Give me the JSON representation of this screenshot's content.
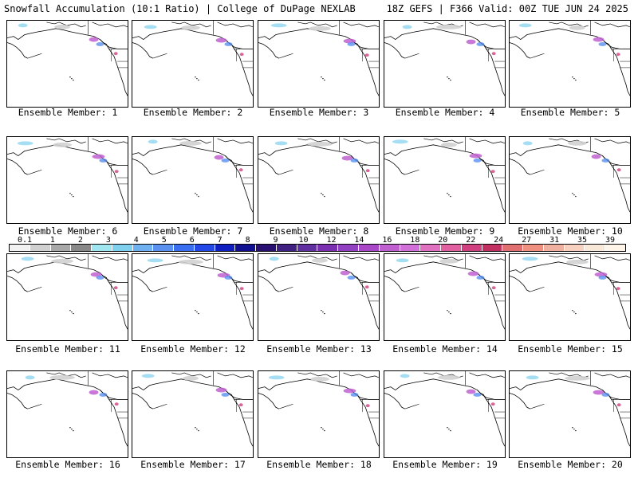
{
  "header": {
    "left_title": "Snowfall Accumulation (10:1 Ratio) | College of DuPage NEXLAB",
    "right_title": "18Z GEFS | F366 Valid: 00Z TUE JUN 24 2025"
  },
  "members": [
    {
      "label": "Ensemble Member: 1"
    },
    {
      "label": "Ensemble Member: 2"
    },
    {
      "label": "Ensemble Member: 3"
    },
    {
      "label": "Ensemble Member: 4"
    },
    {
      "label": "Ensemble Member: 5"
    },
    {
      "label": "Ensemble Member: 6"
    },
    {
      "label": "Ensemble Member: 7"
    },
    {
      "label": "Ensemble Member: 8"
    },
    {
      "label": "Ensemble Member: 9"
    },
    {
      "label": "Ensemble Member: 10"
    },
    {
      "label": "Ensemble Member: 11"
    },
    {
      "label": "Ensemble Member: 12"
    },
    {
      "label": "Ensemble Member: 13"
    },
    {
      "label": "Ensemble Member: 14"
    },
    {
      "label": "Ensemble Member: 15"
    },
    {
      "label": "Ensemble Member: 16"
    },
    {
      "label": "Ensemble Member: 17"
    },
    {
      "label": "Ensemble Member: 18"
    },
    {
      "label": "Ensemble Member: 19"
    },
    {
      "label": "Ensemble Member: 20"
    }
  ],
  "colorbar": {
    "labels": [
      "0.1",
      "1",
      "2",
      "3",
      "4",
      "5",
      "6",
      "7",
      "8",
      "9",
      "10",
      "12",
      "14",
      "16",
      "18",
      "20",
      "22",
      "24",
      "27",
      "31",
      "35",
      "39"
    ],
    "colors": [
      "#f2f2f2",
      "#d0d0d0",
      "#a8a8a8",
      "#888888",
      "#9fe6f0",
      "#7fd0ee",
      "#6fb0f0",
      "#5a90f0",
      "#3a6ef0",
      "#2448e8",
      "#1020c0",
      "#101090",
      "#2a1070",
      "#402080",
      "#6030a0",
      "#7a30b0",
      "#9040c0",
      "#a848c8",
      "#c060d0",
      "#d070d8",
      "#e070c0",
      "#e060a0",
      "#d04080",
      "#c03060",
      "#e07070",
      "#f09080",
      "#f0b0a0",
      "#f8d0c0",
      "#f8e8d8",
      "#fff4e8"
    ]
  }
}
